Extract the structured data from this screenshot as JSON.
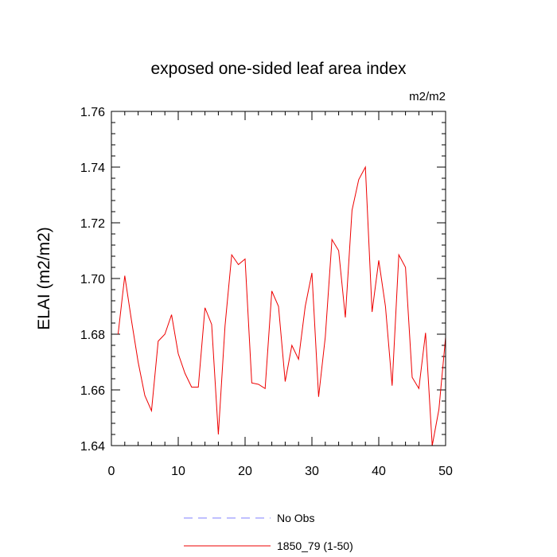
{
  "chart_data": {
    "type": "line",
    "title": "exposed one-sided leaf area index",
    "units": "m2/m2",
    "ylabel": "ELAI  (m2/m2)",
    "xlabel": "",
    "xlim": [
      0,
      50
    ],
    "ylim": [
      1.64,
      1.76
    ],
    "xticks": [
      0,
      10,
      20,
      30,
      40,
      50
    ],
    "xtick_labels": [
      "0",
      "10",
      "20",
      "30",
      "40",
      "50"
    ],
    "yticks": [
      1.64,
      1.66,
      1.68,
      1.7,
      1.72,
      1.74,
      1.76
    ],
    "ytick_labels": [
      "1.64",
      "1.66",
      "1.68",
      "1.70",
      "1.72",
      "1.74",
      "1.76"
    ],
    "grid": false,
    "legend": {
      "placement": "bottom-center",
      "entries": [
        {
          "label": "No Obs",
          "color": "#8080ff",
          "style": "dashed"
        },
        {
          "label": "1850_79 (1-50)",
          "color": "#ee0000",
          "style": "solid"
        }
      ]
    },
    "series": [
      {
        "name": "1850_79 (1-50)",
        "color": "#ee0000",
        "x": [
          1,
          2,
          3,
          4,
          5,
          6,
          7,
          8,
          9,
          10,
          11,
          12,
          13,
          14,
          15,
          16,
          17,
          18,
          19,
          20,
          21,
          22,
          23,
          24,
          25,
          26,
          27,
          28,
          29,
          30,
          31,
          32,
          33,
          34,
          35,
          36,
          37,
          38,
          39,
          40,
          41,
          42,
          43,
          44,
          45,
          46,
          47,
          48,
          49,
          50
        ],
        "y": [
          1.68,
          1.701,
          1.685,
          1.67,
          1.658,
          1.6525,
          1.6775,
          1.68,
          1.687,
          1.673,
          1.666,
          1.661,
          1.661,
          1.6895,
          1.6835,
          1.644,
          1.683,
          1.7085,
          1.705,
          1.707,
          1.6625,
          1.662,
          1.6605,
          1.6955,
          1.69,
          1.663,
          1.676,
          1.671,
          1.69,
          1.702,
          1.6575,
          1.679,
          1.714,
          1.71,
          1.686,
          1.7245,
          1.7355,
          1.74,
          1.688,
          1.7065,
          1.69,
          1.6615,
          1.7085,
          1.704,
          1.6645,
          1.6605,
          1.6805,
          1.64,
          1.653,
          1.679
        ]
      }
    ]
  }
}
